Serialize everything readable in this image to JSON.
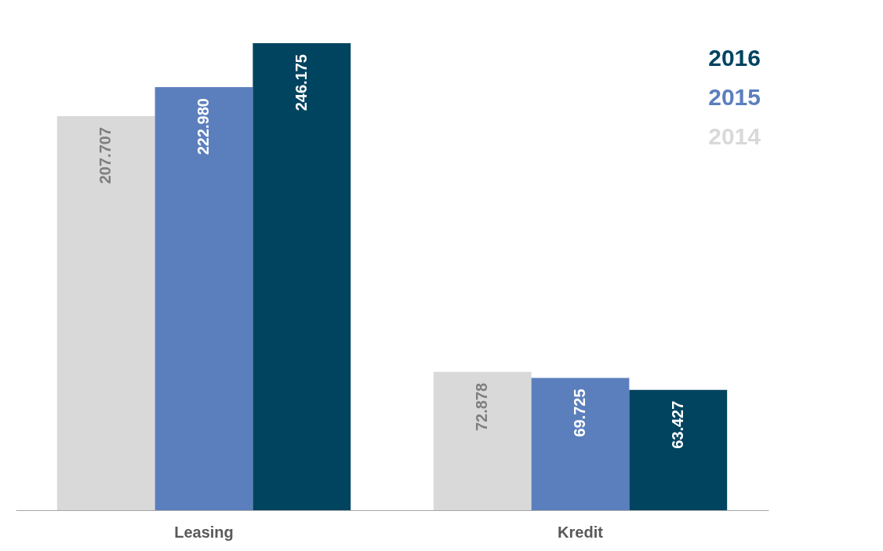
{
  "chart_data": {
    "type": "bar",
    "categories": [
      "Leasing",
      "Kredit"
    ],
    "series": [
      {
        "name": "2014",
        "color": "#d9d9d9",
        "values": [
          207.707,
          72.878
        ],
        "value_labels": [
          "207.707",
          "72.878"
        ]
      },
      {
        "name": "2015",
        "color": "#5b7fbd",
        "values": [
          222.98,
          69.725
        ],
        "value_labels": [
          "222.980",
          "69.725"
        ]
      },
      {
        "name": "2016",
        "color": "#004460",
        "values": [
          246.175,
          63.427
        ],
        "value_labels": [
          "246.175",
          "63.427"
        ]
      }
    ],
    "legend": "top right"
  }
}
